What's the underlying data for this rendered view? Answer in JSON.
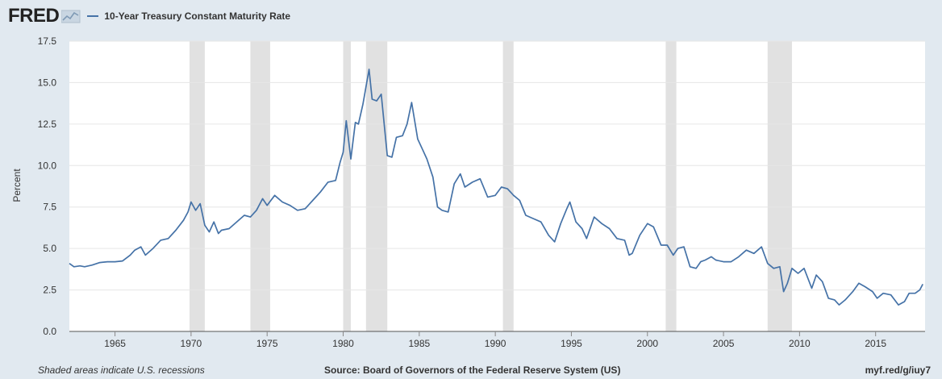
{
  "header": {
    "logo_text": "FRED",
    "legend_label": "10-Year Treasury Constant Maturity Rate"
  },
  "footer": {
    "left_note": "Shaded areas indicate U.S. recessions",
    "source": "Source: Board of Governors of the Federal Reserve System (US)",
    "short_url": "myf.red/g/iuy7"
  },
  "colors": {
    "line": "#4572a7",
    "recession": "#e1e1e1",
    "background": "#e1e9f0",
    "plot_bg": "#ffffff"
  },
  "chart_data": {
    "type": "line",
    "title": "",
    "xlabel": "",
    "ylabel": "Percent",
    "xlim": [
      1962.0,
      2018.25
    ],
    "ylim": [
      0,
      17.5
    ],
    "grid": true,
    "y_ticks": [
      "0.0",
      "2.5",
      "5.0",
      "7.5",
      "10.0",
      "12.5",
      "15.0",
      "17.5"
    ],
    "x_ticks": [
      "1965",
      "1970",
      "1975",
      "1980",
      "1985",
      "1990",
      "1995",
      "2000",
      "2005",
      "2010",
      "2015"
    ],
    "recessions": [
      [
        1969.9,
        1970.9
      ],
      [
        1973.9,
        1975.2
      ],
      [
        1980.0,
        1980.5
      ],
      [
        1981.5,
        1982.9
      ],
      [
        1990.5,
        1991.2
      ],
      [
        2001.2,
        2001.9
      ],
      [
        2007.9,
        2009.5
      ]
    ],
    "series": [
      {
        "name": "10-Year Treasury Constant Maturity Rate",
        "x": [
          1962.0,
          1962.3,
          1962.7,
          1963.0,
          1963.5,
          1964.0,
          1964.5,
          1965.0,
          1965.5,
          1966.0,
          1966.3,
          1966.7,
          1967.0,
          1967.5,
          1968.0,
          1968.5,
          1969.0,
          1969.5,
          1969.8,
          1970.0,
          1970.3,
          1970.6,
          1970.9,
          1971.2,
          1971.5,
          1971.8,
          1972.0,
          1972.5,
          1973.0,
          1973.5,
          1973.9,
          1974.3,
          1974.7,
          1975.0,
          1975.5,
          1976.0,
          1976.5,
          1977.0,
          1977.5,
          1978.0,
          1978.5,
          1979.0,
          1979.5,
          1979.8,
          1980.0,
          1980.2,
          1980.5,
          1980.8,
          1981.0,
          1981.3,
          1981.7,
          1981.9,
          1982.2,
          1982.5,
          1982.9,
          1983.2,
          1983.5,
          1983.9,
          1984.2,
          1984.5,
          1984.9,
          1985.2,
          1985.5,
          1985.9,
          1986.2,
          1986.5,
          1986.9,
          1987.3,
          1987.7,
          1988.0,
          1988.5,
          1989.0,
          1989.5,
          1990.0,
          1990.4,
          1990.8,
          1991.2,
          1991.6,
          1992.0,
          1992.5,
          1993.0,
          1993.5,
          1993.9,
          1994.3,
          1994.7,
          1994.9,
          1995.3,
          1995.7,
          1996.0,
          1996.5,
          1997.0,
          1997.5,
          1998.0,
          1998.5,
          1998.8,
          1999.0,
          1999.5,
          2000.0,
          2000.4,
          2000.9,
          2001.3,
          2001.7,
          2002.0,
          2002.4,
          2002.8,
          2003.2,
          2003.5,
          2003.8,
          2004.2,
          2004.5,
          2005.0,
          2005.5,
          2006.0,
          2006.5,
          2007.0,
          2007.5,
          2007.9,
          2008.3,
          2008.7,
          2008.95,
          2009.2,
          2009.5,
          2009.9,
          2010.3,
          2010.8,
          2011.1,
          2011.5,
          2011.9,
          2012.3,
          2012.6,
          2013.0,
          2013.5,
          2013.9,
          2014.3,
          2014.8,
          2015.1,
          2015.5,
          2016.0,
          2016.5,
          2016.9,
          2017.2,
          2017.6,
          2017.9,
          2018.1
        ],
        "values": [
          4.1,
          3.9,
          3.95,
          3.9,
          4.0,
          4.15,
          4.2,
          4.2,
          4.25,
          4.6,
          4.9,
          5.1,
          4.6,
          5.0,
          5.5,
          5.6,
          6.1,
          6.7,
          7.2,
          7.8,
          7.3,
          7.7,
          6.4,
          6.0,
          6.6,
          5.9,
          6.1,
          6.2,
          6.6,
          7.0,
          6.9,
          7.3,
          8.0,
          7.6,
          8.2,
          7.8,
          7.6,
          7.3,
          7.4,
          7.9,
          8.4,
          9.0,
          9.1,
          10.2,
          10.8,
          12.7,
          10.4,
          12.6,
          12.5,
          13.7,
          15.8,
          14.0,
          13.9,
          14.3,
          10.6,
          10.5,
          11.7,
          11.8,
          12.5,
          13.8,
          11.6,
          11.0,
          10.4,
          9.3,
          7.5,
          7.3,
          7.2,
          8.9,
          9.5,
          8.7,
          9.0,
          9.2,
          8.1,
          8.2,
          8.7,
          8.6,
          8.2,
          7.9,
          7.0,
          6.8,
          6.6,
          5.8,
          5.4,
          6.5,
          7.4,
          7.8,
          6.6,
          6.2,
          5.6,
          6.9,
          6.5,
          6.2,
          5.6,
          5.5,
          4.6,
          4.7,
          5.8,
          6.5,
          6.3,
          5.2,
          5.2,
          4.6,
          5.0,
          5.1,
          3.9,
          3.8,
          4.2,
          4.3,
          4.5,
          4.3,
          4.2,
          4.2,
          4.5,
          4.9,
          4.7,
          5.1,
          4.1,
          3.8,
          3.9,
          2.4,
          2.9,
          3.8,
          3.5,
          3.8,
          2.6,
          3.4,
          3.0,
          2.0,
          1.9,
          1.6,
          1.9,
          2.4,
          2.9,
          2.7,
          2.4,
          2.0,
          2.3,
          2.2,
          1.6,
          1.8,
          2.3,
          2.3,
          2.5,
          2.85
        ]
      }
    ]
  }
}
